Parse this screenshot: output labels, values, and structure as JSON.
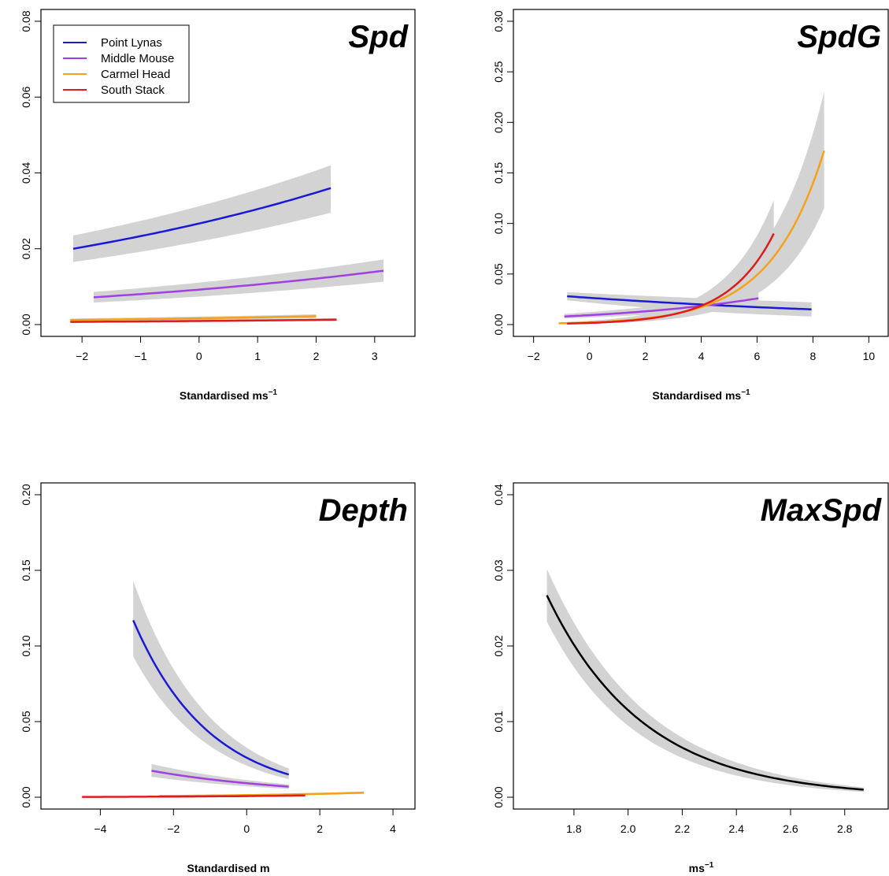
{
  "chart_data": [
    {
      "type": "line",
      "title": "Spd",
      "xlabel": "Standardised ms",
      "xlabel_sup": "−1",
      "ylabel": "",
      "xlim": [
        -2.5,
        3.5
      ],
      "ylim": [
        0,
        0.08
      ],
      "xticks": [
        -2,
        -1,
        0,
        1,
        2,
        3
      ],
      "yticks": [
        0,
        0.02,
        0.04,
        0.06,
        0.08
      ],
      "xtick_labels": [
        "−2",
        "−1",
        "0",
        "1",
        "2",
        "3"
      ],
      "ytick_labels": [
        "0.00",
        "0.02",
        "0.04",
        "0.06",
        "0.08"
      ],
      "legend": {
        "placement": "top-left",
        "entries": [
          {
            "name": "Point Lynas",
            "color": "#1a1ad6"
          },
          {
            "name": "Middle Mouse",
            "color": "#a040e0"
          },
          {
            "name": "Carmel Head",
            "color": "#f5a21a"
          },
          {
            "name": "South Stack",
            "color": "#dd1c1c"
          }
        ]
      },
      "series": [
        {
          "name": "Point Lynas",
          "color": "#1a1ad6",
          "x": [
            -2.15,
            2.25
          ],
          "y": [
            0.02,
            0.036
          ],
          "curve": "exp",
          "band_lower": [
            0.0165,
            0.0295
          ],
          "band_upper": [
            0.0235,
            0.042
          ]
        },
        {
          "name": "Middle Mouse",
          "color": "#a040e0",
          "x": [
            -1.8,
            3.15
          ],
          "y": [
            0.0072,
            0.0142
          ],
          "curve": "exp",
          "band_lower": [
            0.0058,
            0.0113
          ],
          "band_upper": [
            0.0086,
            0.0172
          ]
        },
        {
          "name": "Carmel Head",
          "color": "#f5a21a",
          "x": [
            -2.2,
            2.0
          ],
          "y": [
            0.0012,
            0.0022
          ],
          "curve": "exp",
          "band_lower": [
            0.0008,
            0.0017
          ],
          "band_upper": [
            0.0016,
            0.0027
          ]
        },
        {
          "name": "South Stack",
          "color": "#dd1c1c",
          "x": [
            -2.2,
            2.35
          ],
          "y": [
            0.0007,
            0.0013
          ],
          "curve": "exp",
          "band_lower": [
            0.0005,
            0.0009
          ],
          "band_upper": [
            0.0009,
            0.0017
          ]
        }
      ]
    },
    {
      "type": "line",
      "title": "SpdG",
      "xlabel": "Standardised ms",
      "xlabel_sup": "−1",
      "ylabel": "",
      "xlim": [
        -2.3,
        10.3
      ],
      "ylim": [
        0,
        0.3
      ],
      "xticks": [
        -2,
        0,
        2,
        4,
        6,
        8,
        10
      ],
      "yticks": [
        0,
        0.05,
        0.1,
        0.15,
        0.2,
        0.25,
        0.3
      ],
      "xtick_labels": [
        "−2",
        "0",
        "2",
        "4",
        "6",
        "8",
        "10"
      ],
      "ytick_labels": [
        "0.00",
        "0.05",
        "0.10",
        "0.15",
        "0.20",
        "0.25",
        "0.30"
      ],
      "series": [
        {
          "name": "Point Lynas",
          "color": "#1a1ad6",
          "x": [
            -0.8,
            7.95
          ],
          "y": [
            0.028,
            0.015
          ],
          "curve": "exp",
          "band_lower": [
            0.024,
            0.008
          ],
          "band_upper": [
            0.032,
            0.022
          ]
        },
        {
          "name": "Middle Mouse",
          "color": "#a040e0",
          "x": [
            -0.9,
            6.05
          ],
          "y": [
            0.008,
            0.026
          ],
          "curve": "exp",
          "band_lower": [
            0.006,
            0.019
          ],
          "band_upper": [
            0.0105,
            0.035
          ]
        },
        {
          "name": "Carmel Head",
          "color": "#f5a21a",
          "x": [
            -1.1,
            8.4
          ],
          "y": [
            0.0012,
            0.172
          ],
          "curve": "exp",
          "band_lower": [
            0.0006,
            0.115
          ],
          "band_upper": [
            0.0022,
            0.23
          ]
        },
        {
          "name": "South Stack",
          "color": "#dd1c1c",
          "x": [
            -0.8,
            6.6
          ],
          "y": [
            0.001,
            0.09
          ],
          "curve": "exp",
          "band_lower": [
            0.0005,
            0.063
          ],
          "band_upper": [
            0.002,
            0.123
          ]
        }
      ]
    },
    {
      "type": "line",
      "title": "Depth",
      "xlabel": "Standardised m",
      "xlabel_sup": "",
      "ylabel": "",
      "xlim": [
        -5.3,
        4.3
      ],
      "ylim": [
        0,
        0.2
      ],
      "xticks": [
        -4,
        -2,
        0,
        2,
        4
      ],
      "yticks": [
        0,
        0.05,
        0.1,
        0.15,
        0.2
      ],
      "xtick_labels": [
        "−4",
        "−2",
        "0",
        "2",
        "4"
      ],
      "ytick_labels": [
        "0.00",
        "0.05",
        "0.10",
        "0.15",
        "0.20"
      ],
      "series": [
        {
          "name": "Point Lynas",
          "color": "#1a1ad6",
          "x": [
            -3.1,
            1.15
          ],
          "y": [
            0.117,
            0.015
          ],
          "curve": "exp",
          "band_lower": [
            0.093,
            0.012
          ],
          "band_upper": [
            0.143,
            0.019
          ]
        },
        {
          "name": "Middle Mouse",
          "color": "#a040e0",
          "x": [
            -2.6,
            1.15
          ],
          "y": [
            0.0175,
            0.007
          ],
          "curve": "exp",
          "band_lower": [
            0.0135,
            0.0055
          ],
          "band_upper": [
            0.022,
            0.0085
          ]
        },
        {
          "name": "Carmel Head",
          "color": "#f5a21a",
          "x": [
            -2.4,
            3.2
          ],
          "y": [
            0.0008,
            0.003
          ],
          "curve": "exp",
          "band_lower": [
            0.0004,
            0.0022
          ],
          "band_upper": [
            0.0012,
            0.0038
          ]
        },
        {
          "name": "South Stack",
          "color": "#dd1c1c",
          "x": [
            -4.5,
            1.6
          ],
          "y": [
            0.0002,
            0.0012
          ],
          "curve": "exp",
          "band_lower": [
            0.0001,
            0.0008
          ],
          "band_upper": [
            0.0004,
            0.0016
          ]
        }
      ]
    },
    {
      "type": "line",
      "title": "MaxSpd",
      "xlabel": "ms",
      "xlabel_sup": "−1",
      "ylabel": "",
      "xlim": [
        1.62,
        2.92
      ],
      "ylim": [
        0,
        0.04
      ],
      "xticks": [
        1.8,
        2.0,
        2.2,
        2.4,
        2.6,
        2.8
      ],
      "yticks": [
        0,
        0.01,
        0.02,
        0.03,
        0.04
      ],
      "xtick_labels": [
        "1.8",
        "2.0",
        "2.2",
        "2.4",
        "2.6",
        "2.8"
      ],
      "ytick_labels": [
        "0.00",
        "0.01",
        "0.02",
        "0.03",
        "0.04"
      ],
      "series": [
        {
          "color": "#000000",
          "x": [
            1.7,
            2.87
          ],
          "y": [
            0.0267,
            0.001
          ],
          "curve": "exp",
          "band_lower": [
            0.0232,
            0.0007
          ],
          "band_upper": [
            0.0302,
            0.0013
          ]
        }
      ]
    }
  ]
}
